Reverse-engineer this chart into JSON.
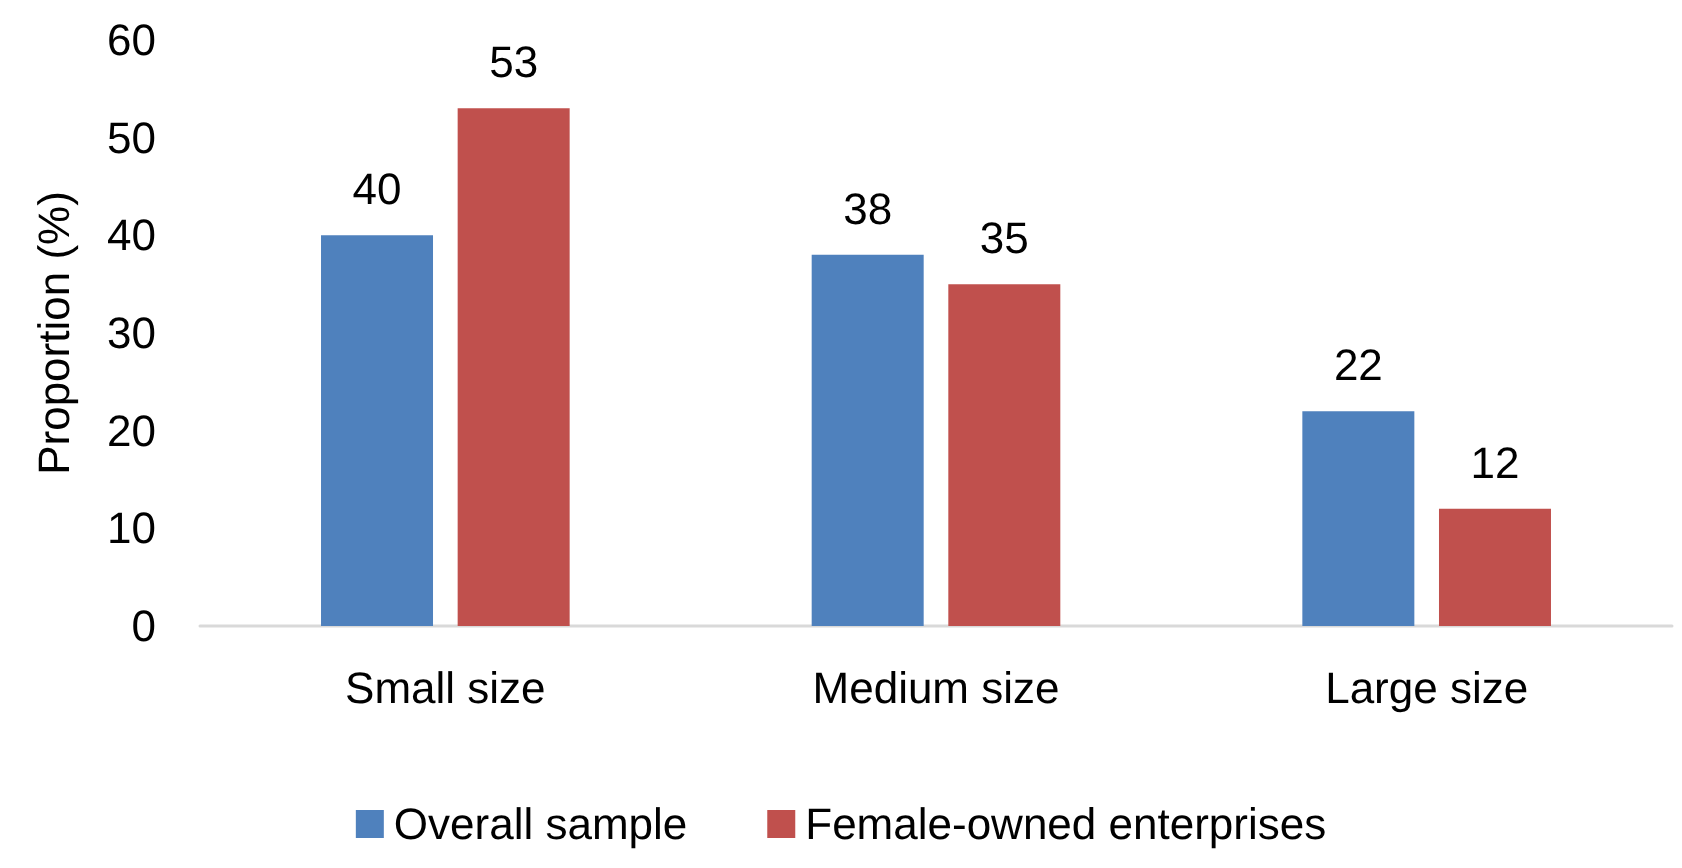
{
  "chart_data": {
    "type": "bar",
    "ylabel": "Proportion (%)",
    "categories": [
      "Small size",
      "Medium size",
      "Large size"
    ],
    "series": [
      {
        "name": "Overall sample",
        "color": "#4f81bd",
        "values": [
          40,
          38,
          22
        ]
      },
      {
        "name": "Female-owned enterprises",
        "color": "#c0504d",
        "values": [
          53,
          35,
          12
        ]
      }
    ],
    "ylim": [
      0,
      60
    ],
    "yticks": [
      0,
      10,
      20,
      30,
      40,
      50,
      60
    ],
    "grid": false,
    "legend": "bottom",
    "data_labels": true
  }
}
